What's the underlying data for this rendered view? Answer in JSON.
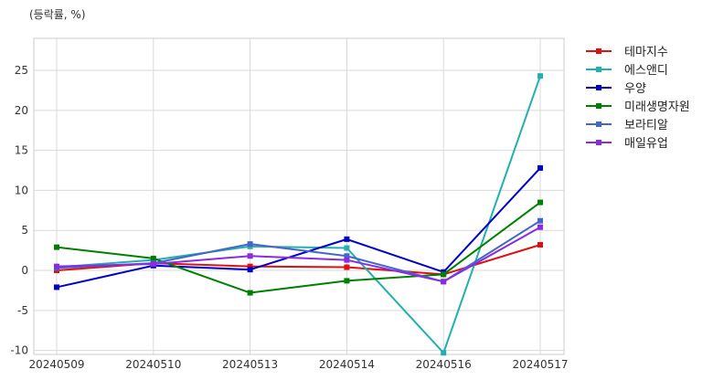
{
  "chart_data": {
    "type": "line",
    "unit_label": "(등락률, %)",
    "categories": [
      "20240509",
      "20240510",
      "20240513",
      "20240514",
      "20240516",
      "20240517"
    ],
    "ylim": [
      -10.5,
      29
    ],
    "yticks": [
      -10,
      -5,
      0,
      5,
      10,
      15,
      20,
      25
    ],
    "grid": true,
    "legend_position": "outside-top-right",
    "series": [
      {
        "name": "테마지수",
        "color": "#dd1111",
        "values": [
          0.0,
          0.9,
          0.5,
          0.4,
          -0.5,
          3.2
        ]
      },
      {
        "name": "에스앤디",
        "color": "#22b0ae",
        "values": [
          0.4,
          1.3,
          3.0,
          2.8,
          -10.3,
          24.3
        ]
      },
      {
        "name": "우양",
        "color": "#0000cc",
        "values": [
          -2.1,
          0.6,
          0.1,
          3.9,
          -0.2,
          12.8
        ]
      },
      {
        "name": "미래생명자원",
        "color": "#008000",
        "values": [
          2.9,
          1.5,
          -2.8,
          -1.3,
          -0.5,
          8.5
        ]
      },
      {
        "name": "보라티알",
        "color": "#4466cc",
        "values": [
          0.3,
          0.9,
          3.3,
          1.8,
          -1.4,
          6.2
        ]
      },
      {
        "name": "매일유업",
        "color": "#8a2be2",
        "values": [
          0.5,
          0.8,
          1.8,
          1.3,
          -1.4,
          5.4
        ]
      }
    ]
  }
}
